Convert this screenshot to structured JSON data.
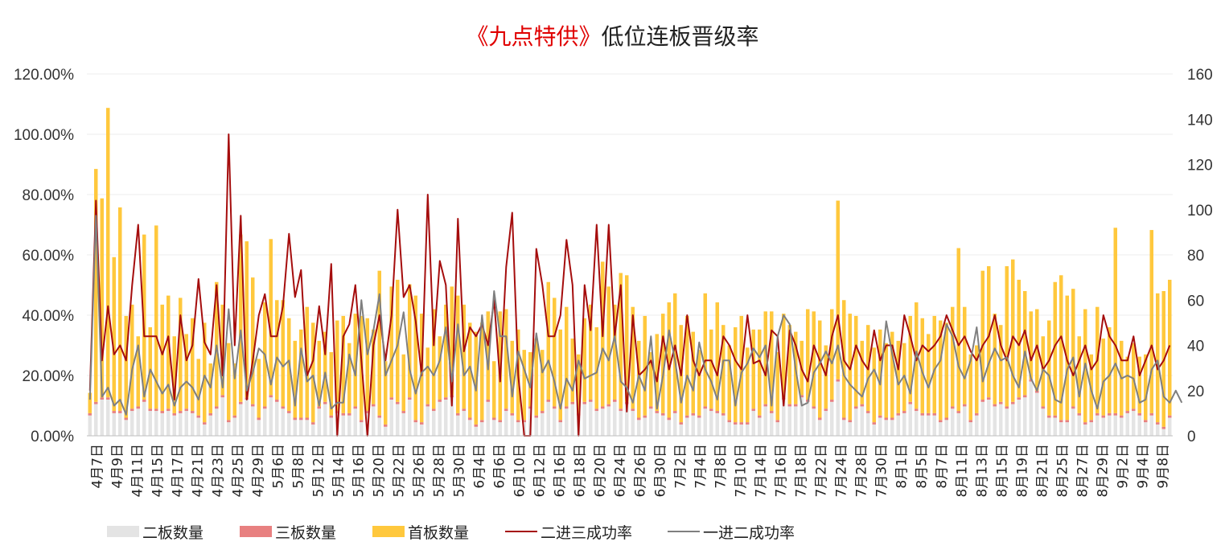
{
  "title": {
    "highlight": "《九点特供》",
    "main": "低位连板晋级率"
  },
  "chart_data": {
    "type": "bar",
    "left_axis": {
      "ticks": [
        "0.00%",
        "20.00%",
        "40.00%",
        "60.00%",
        "80.00%",
        "100.00%",
        "120.00%"
      ],
      "ylim": [
        0,
        1.2
      ]
    },
    "right_axis": {
      "ticks": [
        "0",
        "20",
        "40",
        "60",
        "80",
        "100",
        "120",
        "140",
        "160"
      ],
      "ylim": [
        0,
        160
      ]
    },
    "grid": true,
    "legend_position": "bottom",
    "x_tick_labels": [
      "4月7日",
      "4月9日",
      "4月11日",
      "4月15日",
      "4月17日",
      "4月21日",
      "4月23日",
      "4月25日",
      "4月29日",
      "5月6日",
      "5月8日",
      "5月12日",
      "5月14日",
      "5月16日",
      "5月20日",
      "5月22日",
      "5月26日",
      "5月28日",
      "5月30日",
      "6月4日",
      "6月6日",
      "6月10日",
      "6月12日",
      "6月16日",
      "6月18日",
      "6月20日",
      "6月24日",
      "6月26日",
      "6月30日",
      "7月2日",
      "7月4日",
      "7月8日",
      "7月10日",
      "7月14日",
      "7月16日",
      "7月18日",
      "7月22日",
      "7月24日",
      "7月28日",
      "7月30日",
      "8月1日",
      "8月5日",
      "8月7日",
      "8月11日",
      "8月13日",
      "8月15日",
      "8月19日",
      "8月21日",
      "8月25日",
      "8月27日",
      "8月29日",
      "9月2日",
      "9月4日",
      "9月8日"
    ],
    "series": [
      {
        "name": "二板数量",
        "kind": "stacked-bar",
        "axis": "right",
        "color": "#e4e4e4",
        "values": [
          9,
          14,
          16,
          16,
          10,
          10,
          7,
          11,
          12,
          15,
          11,
          11,
          10,
          11,
          9,
          10,
          11,
          10,
          8,
          5,
          9,
          12,
          17,
          6,
          8,
          14,
          16,
          13,
          7,
          12,
          17,
          15,
          12,
          10,
          7,
          7,
          7,
          5,
          12,
          14,
          8,
          10,
          9,
          9,
          12,
          6,
          10,
          13,
          8,
          4,
          16,
          14,
          10,
          16,
          6,
          5,
          13,
          11,
          15,
          16,
          17,
          9,
          11,
          7,
          4,
          6,
          15,
          7,
          6,
          11,
          9,
          6,
          6,
          12,
          8,
          10,
          15,
          12,
          6,
          12,
          14,
          9,
          14,
          15,
          11,
          12,
          13,
          15,
          11,
          14,
          11,
          7,
          8,
          12,
          10,
          9,
          7,
          10,
          5,
          8,
          9,
          8,
          12,
          11,
          10,
          9,
          6,
          5,
          5,
          5,
          11,
          8,
          13,
          10,
          6,
          16,
          13,
          13,
          17,
          15,
          12,
          7,
          11,
          15,
          24,
          7,
          6,
          12,
          13,
          10,
          5,
          8,
          7,
          7,
          9,
          10,
          14,
          11,
          9,
          9,
          9,
          6,
          7,
          12,
          10,
          13,
          6,
          9,
          15,
          16,
          13,
          14,
          12,
          14,
          16,
          17,
          24,
          19,
          12,
          8,
          8,
          6,
          6,
          12,
          9,
          5,
          6,
          9,
          8,
          9,
          9,
          8,
          10,
          11,
          9,
          6,
          9,
          5,
          3,
          8
        ]
      },
      {
        "name": "三板数量",
        "kind": "stacked-bar",
        "axis": "right",
        "color": "#e88080",
        "values": [
          1,
          1,
          1,
          1,
          1,
          1,
          1,
          1,
          1,
          1,
          1,
          1,
          1,
          1,
          1,
          1,
          1,
          1,
          1,
          1,
          1,
          1,
          1,
          1,
          1,
          1,
          1,
          1,
          1,
          1,
          1,
          1,
          1,
          1,
          1,
          1,
          1,
          1,
          1,
          1,
          1,
          1,
          1,
          1,
          1,
          1,
          1,
          1,
          1,
          1,
          1,
          1,
          1,
          1,
          1,
          1,
          1,
          1,
          1,
          1,
          1,
          1,
          1,
          1,
          1,
          1,
          1,
          1,
          1,
          1,
          1,
          1,
          1,
          1,
          1,
          1,
          1,
          1,
          1,
          1,
          1,
          1,
          1,
          1,
          1,
          1,
          1,
          1,
          1,
          1,
          1,
          1,
          1,
          1,
          1,
          1,
          1,
          1,
          1,
          1,
          1,
          1,
          1,
          1,
          1,
          1,
          1,
          1,
          1,
          1,
          1,
          1,
          1,
          1,
          1,
          1,
          1,
          1,
          1,
          1,
          1,
          1,
          1,
          1,
          1,
          1,
          1,
          1,
          1,
          1,
          1,
          1,
          1,
          1,
          1,
          1,
          1,
          1,
          1,
          1,
          1,
          1,
          1,
          1,
          1,
          1,
          1,
          1,
          1,
          1,
          1,
          1,
          1,
          1,
          1,
          1,
          1,
          1,
          1,
          1,
          1,
          1,
          1,
          1,
          1,
          1,
          1,
          1,
          1,
          1,
          1,
          1,
          1,
          1,
          1,
          1,
          1,
          1,
          1,
          1
        ]
      },
      {
        "name": "首板数量",
        "kind": "stacked-bar",
        "axis": "right",
        "color": "#ffc83d",
        "values": [
          9,
          103,
          88,
          128,
          68,
          90,
          45,
          46,
          31,
          73,
          36,
          81,
          47,
          50,
          34,
          50,
          33,
          41,
          25,
          44,
          22,
          55,
          40,
          34,
          23,
          74,
          69,
          56,
          26,
          46,
          69,
          44,
          47,
          41,
          34,
          39,
          49,
          44,
          29,
          31,
          28,
          40,
          43,
          31,
          41,
          46,
          41,
          33,
          64,
          28,
          49,
          54,
          25,
          50,
          55,
          48,
          25,
          44,
          28,
          41,
          48,
          52,
          46,
          42,
          41,
          43,
          39,
          25,
          48,
          44,
          32,
          40,
          31,
          24,
          34,
          27,
          52,
          48,
          40,
          44,
          28,
          26,
          37,
          42,
          36,
          64,
          52,
          42,
          60,
          56,
          45,
          34,
          44,
          24,
          34,
          44,
          51,
          52,
          43,
          44,
          36,
          29,
          50,
          35,
          48,
          39,
          33,
          42,
          47,
          33,
          35,
          38,
          41,
          44,
          30,
          37,
          35,
          32,
          24,
          40,
          42,
          43,
          28,
          40,
          79,
          52,
          47,
          40,
          28,
          38,
          33,
          38,
          33,
          38,
          32,
          30,
          38,
          47,
          42,
          35,
          43,
          44,
          42,
          44,
          72,
          43,
          29,
          30,
          57,
          58,
          40,
          34,
          62,
          63,
          52,
          46,
          30,
          36,
          31,
          42,
          59,
          64,
          55,
          52,
          34,
          50,
          29,
          47,
          34,
          38,
          82,
          33,
          24,
          29,
          25,
          29,
          81,
          57,
          60,
          60
        ]
      },
      {
        "name": "二进三成功率",
        "kind": "line",
        "axis": "left",
        "color": "#a50d0d",
        "values": [
          0.15,
          0.78,
          0.25,
          0.43,
          0.27,
          0.3,
          0.25,
          0.5,
          0.7,
          0.33,
          0.33,
          0.33,
          0.27,
          0.33,
          0.12,
          0.4,
          0.25,
          0.3,
          0.52,
          0.31,
          0.27,
          0.5,
          0.2,
          1.0,
          0.3,
          0.73,
          0.12,
          0.25,
          0.4,
          0.47,
          0.33,
          0.33,
          0.43,
          0.67,
          0.46,
          0.55,
          0.2,
          0.25,
          0.43,
          0.27,
          0.57,
          0.0,
          0.33,
          0.37,
          0.5,
          0.25,
          0.0,
          0.3,
          0.4,
          0.25,
          0.4,
          0.75,
          0.46,
          0.5,
          0.38,
          0.2,
          0.8,
          0.3,
          0.58,
          0.5,
          0.1,
          0.72,
          0.28,
          0.36,
          0.33,
          0.37,
          0.3,
          0.45,
          0.18,
          0.56,
          0.74,
          0.2,
          0.0,
          0.0,
          0.62,
          0.5,
          0.33,
          0.33,
          0.4,
          0.65,
          0.5,
          0.0,
          0.5,
          0.35,
          0.7,
          0.33,
          0.7,
          0.33,
          0.5,
          0.08,
          0.4,
          0.2,
          0.22,
          0.25,
          0.18,
          0.33,
          0.22,
          0.3,
          0.2,
          0.4,
          0.25,
          0.2,
          0.25,
          0.25,
          0.2,
          0.33,
          0.3,
          0.25,
          0.22,
          0.4,
          0.24,
          0.25,
          0.2,
          0.35,
          0.33,
          0.1,
          0.35,
          0.3,
          0.22,
          0.18,
          0.3,
          0.25,
          0.2,
          0.33,
          0.4,
          0.25,
          0.22,
          0.3,
          0.25,
          0.22,
          0.35,
          0.25,
          0.3,
          0.3,
          0.22,
          0.4,
          0.33,
          0.25,
          0.3,
          0.28,
          0.3,
          0.33,
          0.4,
          0.35,
          0.3,
          0.33,
          0.28,
          0.25,
          0.3,
          0.33,
          0.4,
          0.3,
          0.25,
          0.33,
          0.3,
          0.35,
          0.25,
          0.3,
          0.22,
          0.25,
          0.3,
          0.33,
          0.25,
          0.2,
          0.25,
          0.3,
          0.22,
          0.25,
          0.4,
          0.33,
          0.3,
          0.25,
          0.25,
          0.33,
          0.2,
          0.25,
          0.3,
          0.22,
          0.25,
          0.3
        ]
      },
      {
        "name": "一进二成功率",
        "kind": "line",
        "axis": "left",
        "color": "#7f7f7f",
        "values": [
          0.12,
          0.73,
          0.13,
          0.16,
          0.1,
          0.12,
          0.07,
          0.22,
          0.3,
          0.13,
          0.22,
          0.18,
          0.14,
          0.17,
          0.1,
          0.16,
          0.18,
          0.16,
          0.12,
          0.2,
          0.16,
          0.3,
          0.16,
          0.42,
          0.19,
          0.35,
          0.15,
          0.21,
          0.29,
          0.27,
          0.17,
          0.26,
          0.23,
          0.25,
          0.1,
          0.29,
          0.18,
          0.2,
          0.1,
          0.21,
          0.09,
          0.11,
          0.11,
          0.27,
          0.2,
          0.45,
          0.27,
          0.35,
          0.47,
          0.2,
          0.25,
          0.3,
          0.41,
          0.22,
          0.14,
          0.21,
          0.23,
          0.2,
          0.25,
          0.36,
          0.18,
          0.37,
          0.2,
          0.23,
          0.15,
          0.4,
          0.22,
          0.48,
          0.33,
          0.33,
          0.13,
          0.28,
          0.22,
          0.16,
          0.34,
          0.21,
          0.25,
          0.18,
          0.09,
          0.19,
          0.15,
          0.25,
          0.19,
          0.2,
          0.21,
          0.29,
          0.25,
          0.33,
          0.18,
          0.16,
          0.11,
          0.2,
          0.15,
          0.33,
          0.09,
          0.2,
          0.35,
          0.25,
          0.11,
          0.2,
          0.15,
          0.31,
          0.22,
          0.18,
          0.12,
          0.25,
          0.25,
          0.1,
          0.21,
          0.24,
          0.29,
          0.26,
          0.3,
          0.1,
          0.33,
          0.4,
          0.37,
          0.22,
          0.1,
          0.11,
          0.21,
          0.24,
          0.28,
          0.24,
          0.3,
          0.2,
          0.17,
          0.15,
          0.13,
          0.19,
          0.22,
          0.17,
          0.38,
          0.27,
          0.17,
          0.2,
          0.14,
          0.28,
          0.21,
          0.16,
          0.22,
          0.25,
          0.37,
          0.33,
          0.23,
          0.19,
          0.25,
          0.36,
          0.18,
          0.24,
          0.29,
          0.25,
          0.26,
          0.2,
          0.16,
          0.28,
          0.19,
          0.15,
          0.22,
          0.2,
          0.12,
          0.11,
          0.22,
          0.26,
          0.13,
          0.24,
          0.15,
          0.09,
          0.18,
          0.2,
          0.24,
          0.19,
          0.2,
          0.19,
          0.11,
          0.12,
          0.22,
          0.25,
          0.13,
          0.11,
          0.15,
          0.11
        ]
      }
    ]
  }
}
